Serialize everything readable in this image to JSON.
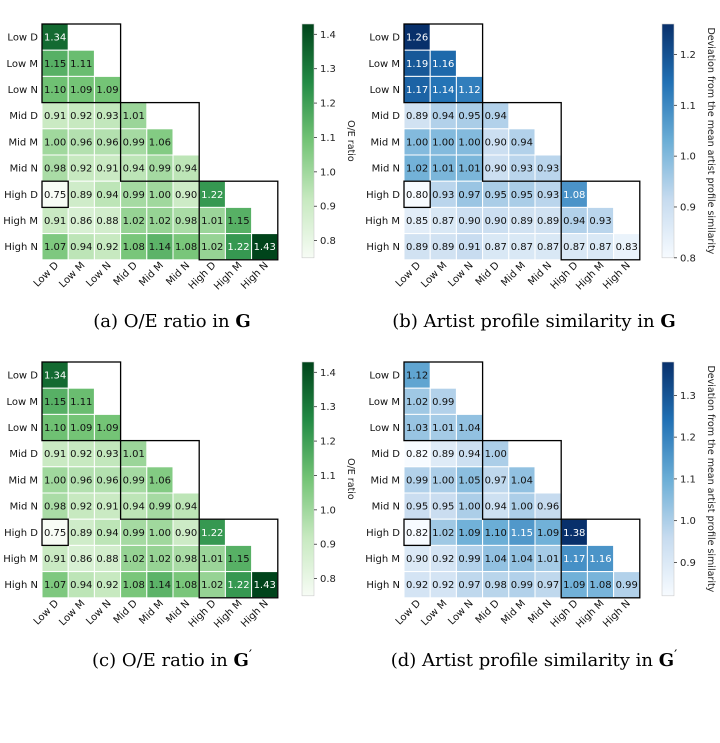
{
  "chart_data": [
    {
      "type": "heatmap",
      "caption_prefix": "(a) O/E ratio in",
      "caption_symbol": "G",
      "caption_prime": "",
      "rows": [
        "Low D",
        "Low M",
        "Low N",
        "Mid D",
        "Mid M",
        "Mid N",
        "High D",
        "High M",
        "High N"
      ],
      "cols": [
        "Low D",
        "Low M",
        "Low N",
        "Mid D",
        "Mid M",
        "Mid N",
        "High D",
        "High M",
        "High N"
      ],
      "values": [
        [
          1.34
        ],
        [
          1.15,
          1.11
        ],
        [
          1.1,
          1.09,
          1.09
        ],
        [
          0.91,
          0.92,
          0.93,
          1.01
        ],
        [
          1.0,
          0.96,
          0.96,
          0.99,
          1.06
        ],
        [
          0.98,
          0.92,
          0.91,
          0.94,
          0.99,
          0.94
        ],
        [
          0.75,
          0.89,
          0.94,
          0.99,
          1.0,
          0.9,
          1.22
        ],
        [
          0.91,
          0.86,
          0.88,
          1.02,
          1.02,
          0.98,
          1.01,
          1.15
        ],
        [
          1.07,
          0.94,
          0.92,
          1.08,
          1.14,
          1.08,
          1.02,
          1.22,
          1.43
        ]
      ],
      "colormap": "Greens",
      "color_range": [
        0.75,
        1.43
      ],
      "colorbar_ticks": [
        0.8,
        0.9,
        1.0,
        1.1,
        1.2,
        1.3,
        1.4
      ],
      "colorbar_label": "O/E ratio"
    },
    {
      "type": "heatmap",
      "caption_prefix": "(b) Artist profile similarity in",
      "caption_symbol": "G",
      "caption_prime": "",
      "rows": [
        "Low D",
        "Low M",
        "Low N",
        "Mid D",
        "Mid M",
        "Mid N",
        "High D",
        "High M",
        "High N"
      ],
      "cols": [
        "Low D",
        "Low M",
        "Low N",
        "Mid D",
        "Mid M",
        "Mid N",
        "High D",
        "High M",
        "High N"
      ],
      "values": [
        [
          1.26
        ],
        [
          1.19,
          1.16
        ],
        [
          1.17,
          1.14,
          1.12
        ],
        [
          0.89,
          0.94,
          0.95,
          0.94
        ],
        [
          1.0,
          1.0,
          1.0,
          0.9,
          0.94
        ],
        [
          1.02,
          1.01,
          1.01,
          0.9,
          0.93,
          0.93
        ],
        [
          0.8,
          0.93,
          0.97,
          0.95,
          0.95,
          0.93,
          1.08
        ],
        [
          0.85,
          0.87,
          0.9,
          0.9,
          0.89,
          0.89,
          0.94,
          0.93
        ],
        [
          0.89,
          0.89,
          0.91,
          0.87,
          0.87,
          0.87,
          0.87,
          0.87,
          0.83
        ]
      ],
      "colormap": "Blues",
      "color_range": [
        0.8,
        1.26
      ],
      "colorbar_ticks": [
        0.8,
        0.9,
        1.0,
        1.1,
        1.2
      ],
      "colorbar_label": "Deviation from the mean artist profile similarity"
    },
    {
      "type": "heatmap",
      "caption_prefix": "(c) O/E ratio in",
      "caption_symbol": "G",
      "caption_prime": "′",
      "rows": [
        "Low D",
        "Low M",
        "Low N",
        "Mid D",
        "Mid M",
        "Mid N",
        "High D",
        "High M",
        "High N"
      ],
      "cols": [
        "Low D",
        "Low M",
        "Low N",
        "Mid D",
        "Mid M",
        "Mid N",
        "High D",
        "High M",
        "High N"
      ],
      "values": [
        [
          1.34
        ],
        [
          1.15,
          1.11
        ],
        [
          1.1,
          1.09,
          1.09
        ],
        [
          0.91,
          0.92,
          0.93,
          1.01
        ],
        [
          1.0,
          0.96,
          0.96,
          0.99,
          1.06
        ],
        [
          0.98,
          0.92,
          0.91,
          0.94,
          0.99,
          0.94
        ],
        [
          0.75,
          0.89,
          0.94,
          0.99,
          1.0,
          0.9,
          1.22
        ],
        [
          0.91,
          0.86,
          0.88,
          1.02,
          1.02,
          0.98,
          1.01,
          1.15
        ],
        [
          1.07,
          0.94,
          0.92,
          1.08,
          1.14,
          1.08,
          1.02,
          1.22,
          1.43
        ]
      ],
      "colormap": "Greens",
      "color_range": [
        0.75,
        1.43
      ],
      "colorbar_ticks": [
        0.8,
        0.9,
        1.0,
        1.1,
        1.2,
        1.3,
        1.4
      ],
      "colorbar_label": "O/E ratio"
    },
    {
      "type": "heatmap",
      "caption_prefix": "(d) Artist profile similarity in",
      "caption_symbol": "G",
      "caption_prime": "′",
      "rows": [
        "Low D",
        "Low M",
        "Low N",
        "Mid D",
        "Mid M",
        "Mid N",
        "High D",
        "High M",
        "High N"
      ],
      "cols": [
        "Low D",
        "Low M",
        "Low N",
        "Mid D",
        "Mid M",
        "Mid N",
        "High D",
        "High M",
        "High N"
      ],
      "values": [
        [
          1.12
        ],
        [
          1.02,
          0.99
        ],
        [
          1.03,
          1.01,
          1.04
        ],
        [
          0.82,
          0.89,
          0.94,
          1.0
        ],
        [
          0.99,
          1.0,
          1.05,
          0.97,
          1.04
        ],
        [
          0.95,
          0.95,
          1.0,
          0.94,
          1.0,
          0.96
        ],
        [
          0.82,
          1.02,
          1.09,
          1.1,
          1.15,
          1.09,
          1.38
        ],
        [
          0.9,
          0.92,
          0.99,
          1.04,
          1.04,
          1.01,
          1.17,
          1.16
        ],
        [
          0.92,
          0.92,
          0.97,
          0.98,
          0.99,
          0.97,
          1.09,
          1.08,
          0.99
        ]
      ],
      "colormap": "Blues",
      "color_range": [
        0.82,
        1.38
      ],
      "colorbar_ticks": [
        0.9,
        1.0,
        1.1,
        1.2,
        1.3
      ],
      "colorbar_label": "Deviation from the mean artist profile similarity"
    }
  ]
}
